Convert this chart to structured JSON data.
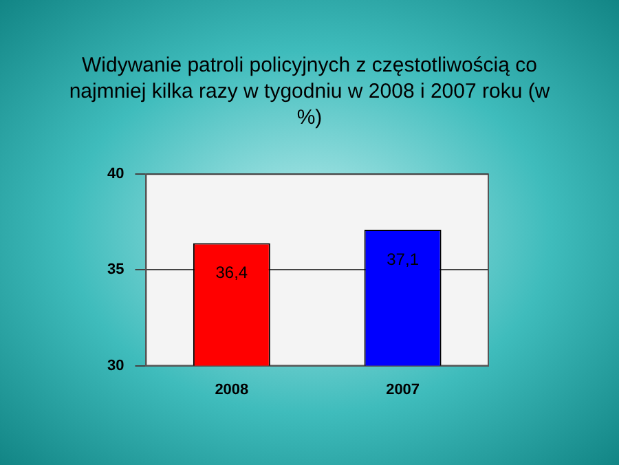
{
  "chart_data": {
    "type": "bar",
    "title": "Widywanie patroli policyjnych z częstotliwością co najmniej kilka razy w tygodniu w 2008 i 2007 roku (w %)",
    "categories": [
      "2008",
      "2007"
    ],
    "values": [
      36.4,
      37.1
    ],
    "colors": [
      "#ff0000",
      "#0000ff"
    ],
    "value_labels": [
      "36,4",
      "37,1"
    ],
    "ylim": [
      30,
      40
    ],
    "yticks": [
      30,
      35,
      40
    ],
    "grid": "y",
    "legend": false
  }
}
